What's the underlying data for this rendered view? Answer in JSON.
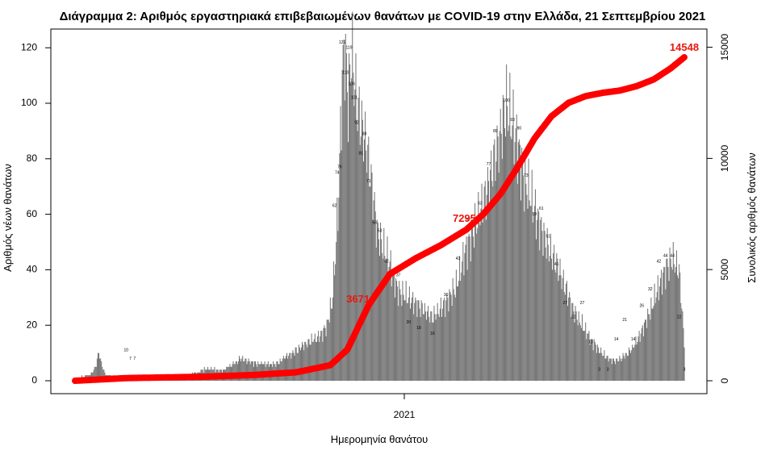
{
  "chart_data": {
    "type": "bar+line",
    "title": "Διάγραμμα 2: Αριθμός εργαστηριακά επιβεβαιωμένων θανάτων με COVID-19 στην Ελλάδα, 21 Σεπτεμβρίου 2021",
    "xlabel": "Ημερομηνία θανάτου",
    "ylabel_left": "Αριθμός νέων θανάτων",
    "ylabel_right": "Συνολικός αριθμός θανάτων",
    "x_ticks": [
      "2021"
    ],
    "y_left": {
      "lim": [
        0,
        125
      ],
      "ticks": [
        "0",
        "20",
        "40",
        "60",
        "80",
        "100",
        "120"
      ]
    },
    "y_right": {
      "lim": [
        0,
        15600
      ],
      "ticks": [
        "0",
        "5000",
        "10000",
        "15000"
      ]
    },
    "colors": {
      "bars": "#777777",
      "cumulative_line": "#ff0000",
      "cumulative_labels": "#e8170f"
    },
    "daily_deaths": {
      "keyframes": [
        [
          0,
          1
        ],
        [
          18,
          2
        ],
        [
          24,
          5
        ],
        [
          28,
          10
        ],
        [
          33,
          4
        ],
        [
          38,
          2
        ],
        [
          50,
          1
        ],
        [
          80,
          2
        ],
        [
          100,
          2
        ],
        [
          135,
          2
        ],
        [
          152,
          4
        ],
        [
          175,
          4
        ],
        [
          195,
          8
        ],
        [
          215,
          6
        ],
        [
          235,
          6
        ],
        [
          255,
          10
        ],
        [
          275,
          14
        ],
        [
          288,
          16
        ],
        [
          296,
          20
        ],
        [
          302,
          28
        ],
        [
          306,
          45
        ],
        [
          310,
          68
        ],
        [
          314,
          110
        ],
        [
          317,
          121
        ],
        [
          321,
          100
        ],
        [
          325,
          119
        ],
        [
          331,
          100
        ],
        [
          337,
          92
        ],
        [
          343,
          84
        ],
        [
          349,
          70
        ],
        [
          355,
          54
        ],
        [
          362,
          48
        ],
        [
          368,
          44
        ],
        [
          374,
          38
        ],
        [
          380,
          32
        ],
        [
          392,
          30
        ],
        [
          404,
          27
        ],
        [
          420,
          23
        ],
        [
          436,
          28
        ],
        [
          448,
          34
        ],
        [
          460,
          48
        ],
        [
          472,
          57
        ],
        [
          484,
          68
        ],
        [
          493,
          80
        ],
        [
          500,
          89
        ],
        [
          507,
          100
        ],
        [
          514,
          92
        ],
        [
          521,
          84
        ],
        [
          528,
          72
        ],
        [
          536,
          66
        ],
        [
          546,
          56
        ],
        [
          556,
          48
        ],
        [
          566,
          42
        ],
        [
          576,
          34
        ],
        [
          586,
          25
        ],
        [
          596,
          20
        ],
        [
          606,
          15
        ],
        [
          616,
          11
        ],
        [
          626,
          8
        ],
        [
          636,
          7
        ],
        [
          646,
          9
        ],
        [
          656,
          12
        ],
        [
          666,
          18
        ],
        [
          676,
          25
        ],
        [
          686,
          34
        ],
        [
          694,
          40
        ],
        [
          702,
          44
        ],
        [
          710,
          40
        ],
        [
          716,
          14
        ]
      ],
      "labels": [
        {
          "day": 60,
          "value": 10
        },
        {
          "day": 65,
          "value": 7
        },
        {
          "day": 70,
          "value": 7
        },
        {
          "day": 305,
          "value": 62
        },
        {
          "day": 308,
          "value": 74
        },
        {
          "day": 311,
          "value": 76
        },
        {
          "day": 314,
          "value": 121
        },
        {
          "day": 318,
          "value": 110
        },
        {
          "day": 322,
          "value": 119
        },
        {
          "day": 325,
          "value": 106
        },
        {
          "day": 328,
          "value": 101
        },
        {
          "day": 331,
          "value": 92
        },
        {
          "day": 336,
          "value": 81
        },
        {
          "day": 340,
          "value": 88
        },
        {
          "day": 345,
          "value": 71
        },
        {
          "day": 352,
          "value": 56
        },
        {
          "day": 358,
          "value": 53
        },
        {
          "day": 366,
          "value": 42
        },
        {
          "day": 380,
          "value": 37
        },
        {
          "day": 392,
          "value": 20
        },
        {
          "day": 404,
          "value": 18
        },
        {
          "day": 420,
          "value": 16
        },
        {
          "day": 436,
          "value": 30
        },
        {
          "day": 450,
          "value": 43
        },
        {
          "day": 462,
          "value": 57
        },
        {
          "day": 476,
          "value": 63
        },
        {
          "day": 486,
          "value": 77
        },
        {
          "day": 494,
          "value": 89
        },
        {
          "day": 507,
          "value": 100
        },
        {
          "day": 514,
          "value": 93
        },
        {
          "day": 522,
          "value": 90
        },
        {
          "day": 530,
          "value": 73
        },
        {
          "day": 540,
          "value": 59
        },
        {
          "day": 548,
          "value": 61
        },
        {
          "day": 556,
          "value": 51
        },
        {
          "day": 566,
          "value": 41
        },
        {
          "day": 576,
          "value": 27
        },
        {
          "day": 586,
          "value": 22
        },
        {
          "day": 596,
          "value": 27
        },
        {
          "day": 606,
          "value": 13
        },
        {
          "day": 616,
          "value": 3
        },
        {
          "day": 626,
          "value": 3
        },
        {
          "day": 636,
          "value": 14
        },
        {
          "day": 646,
          "value": 21
        },
        {
          "day": 656,
          "value": 14
        },
        {
          "day": 666,
          "value": 26
        },
        {
          "day": 676,
          "value": 32
        },
        {
          "day": 686,
          "value": 42
        },
        {
          "day": 694,
          "value": 44
        },
        {
          "day": 702,
          "value": 44
        },
        {
          "day": 710,
          "value": 22
        },
        {
          "day": 716,
          "value": 3
        }
      ]
    },
    "cumulative_deaths": {
      "keyframes": [
        [
          0,
          0
        ],
        [
          60,
          120
        ],
        [
          150,
          180
        ],
        [
          210,
          260
        ],
        [
          260,
          380
        ],
        [
          300,
          700
        ],
        [
          320,
          1400
        ],
        [
          345,
          3400
        ],
        [
          370,
          4800
        ],
        [
          400,
          5500
        ],
        [
          430,
          6100
        ],
        [
          460,
          6800
        ],
        [
          480,
          7500
        ],
        [
          500,
          8400
        ],
        [
          520,
          9600
        ],
        [
          540,
          10900
        ],
        [
          560,
          11900
        ],
        [
          580,
          12500
        ],
        [
          600,
          12800
        ],
        [
          620,
          12950
        ],
        [
          640,
          13050
        ],
        [
          660,
          13250
        ],
        [
          680,
          13550
        ],
        [
          700,
          14050
        ],
        [
          716,
          14548
        ]
      ],
      "labels": [
        {
          "day": 350,
          "value": 3671,
          "text": "3671"
        },
        {
          "day": 475,
          "value": 7295,
          "text": "7295"
        },
        {
          "day": 716,
          "value": 14548,
          "text": "14548"
        }
      ]
    }
  }
}
